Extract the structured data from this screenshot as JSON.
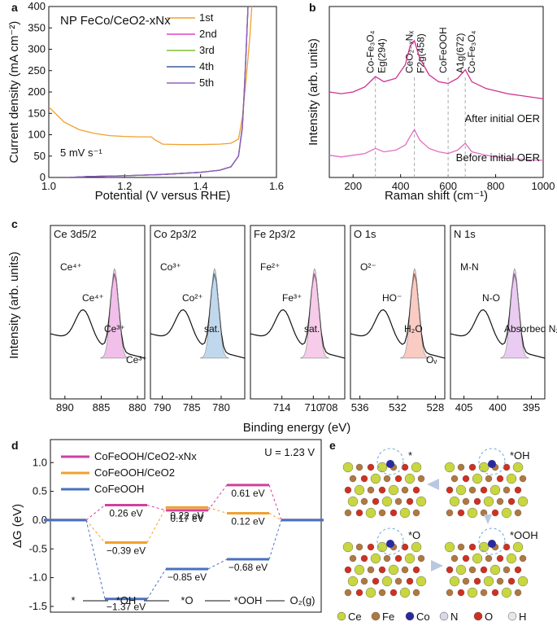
{
  "chart_data": [
    {
      "panel": "a",
      "type": "line",
      "annotation_sample": "NP FeCo/CeO2-xNx",
      "annotation_rate": "5 mV s⁻¹",
      "xlabel": "Potential (V versus RHE)",
      "ylabel": "Current density (mA cm⁻²)",
      "xlim": [
        1.0,
        1.6
      ],
      "ylim": [
        0,
        400
      ],
      "xticks": [
        "1.0",
        "1.2",
        "1.4",
        "1.6"
      ],
      "yticks": [
        "0",
        "50",
        "100",
        "150",
        "200",
        "250",
        "300",
        "350",
        "400"
      ],
      "series": [
        {
          "name": "1st",
          "color": "#f0a030",
          "x": [
            1.0,
            1.04,
            1.08,
            1.12,
            1.16,
            1.2,
            1.24,
            1.27,
            1.28,
            1.3,
            1.35,
            1.4,
            1.45,
            1.48,
            1.5,
            1.51,
            1.52,
            1.53,
            1.535
          ],
          "y": [
            165,
            130,
            112,
            103,
            98,
            96,
            95,
            95,
            88,
            78,
            77,
            77,
            78,
            80,
            90,
            140,
            230,
            330,
            400
          ]
        },
        {
          "name": "2nd",
          "color": "#e040c8",
          "x": [
            1.05,
            1.1,
            1.2,
            1.3,
            1.4,
            1.45,
            1.48,
            1.5,
            1.51,
            1.515,
            1.52,
            1.525
          ],
          "y": [
            0,
            2,
            4,
            7,
            12,
            17,
            25,
            50,
            120,
            200,
            300,
            400
          ]
        },
        {
          "name": "3rd",
          "color": "#80c030",
          "x": [
            1.05,
            1.1,
            1.2,
            1.3,
            1.4,
            1.45,
            1.48,
            1.5,
            1.51,
            1.515,
            1.52,
            1.525
          ],
          "y": [
            0,
            2,
            4,
            7,
            12,
            17,
            25,
            50,
            118,
            198,
            298,
            400
          ]
        },
        {
          "name": "4th",
          "color": "#3d5a99",
          "x": [
            1.05,
            1.1,
            1.2,
            1.3,
            1.4,
            1.45,
            1.48,
            1.5,
            1.51,
            1.515,
            1.52,
            1.525
          ],
          "y": [
            0,
            2,
            4,
            7,
            12,
            17,
            25,
            50,
            116,
            196,
            296,
            400
          ]
        },
        {
          "name": "5th",
          "color": "#9060c0",
          "x": [
            1.05,
            1.1,
            1.2,
            1.3,
            1.4,
            1.45,
            1.48,
            1.5,
            1.51,
            1.515,
            1.52,
            1.525
          ],
          "y": [
            0,
            2,
            4,
            7,
            12,
            17,
            25,
            50,
            114,
            194,
            294,
            400
          ]
        }
      ]
    },
    {
      "panel": "b",
      "type": "line",
      "xlabel": "Raman shift (cm⁻¹)",
      "ylabel": "Intensity (arb. units)",
      "xlim": [
        100,
        1000
      ],
      "xticks": [
        "200",
        "400",
        "600",
        "800",
        "1000"
      ],
      "peak_labels": [
        {
          "text": "Co-Fe₃O₄",
          "sub": "Eg(294)",
          "x": 294
        },
        {
          "text": "CeO₂₋ₓNₓ",
          "sub": "F2g(458)",
          "x": 458
        },
        {
          "text": "CoFeOOH",
          "sub": "",
          "x": 600
        },
        {
          "text": "A1g(672)",
          "sub": "Co-Fe₃O₄",
          "x": 672
        }
      ],
      "series": [
        {
          "name": "After initial OER",
          "color": "#d03090",
          "x": [
            100,
            150,
            200,
            250,
            294,
            330,
            380,
            420,
            440,
            458,
            480,
            520,
            560,
            600,
            640,
            672,
            700,
            760,
            850,
            1000
          ],
          "y": [
            0.7,
            0.69,
            0.7,
            0.73,
            0.79,
            0.76,
            0.78,
            0.86,
            0.97,
            1.0,
            0.9,
            0.8,
            0.76,
            0.75,
            0.78,
            0.83,
            0.76,
            0.72,
            0.69,
            0.66
          ]
        },
        {
          "name": "Before initial OER",
          "color": "#e070c0",
          "x": [
            100,
            150,
            200,
            250,
            294,
            330,
            380,
            420,
            440,
            458,
            480,
            520,
            560,
            600,
            640,
            672,
            700,
            760,
            850,
            1000
          ],
          "y": [
            0.33,
            0.32,
            0.33,
            0.34,
            0.37,
            0.35,
            0.36,
            0.39,
            0.44,
            0.48,
            0.42,
            0.37,
            0.35,
            0.34,
            0.36,
            0.4,
            0.35,
            0.33,
            0.31,
            0.3
          ]
        }
      ]
    },
    {
      "panel": "c",
      "type": "line",
      "xlabel": "Binding energy (eV)",
      "ylabel": "Intensity (arb. units)",
      "subpanels": [
        {
          "title": "Ce 3d5/2",
          "xticks": [
            "890",
            "885",
            "880"
          ],
          "xlim": [
            892,
            879
          ],
          "labels": [
            "Ce⁴⁺",
            "Ce⁴⁺",
            "Ce³⁺",
            "Ce³⁺"
          ]
        },
        {
          "title": "Co 2p3/2",
          "xticks": [
            "790",
            "785",
            "780"
          ],
          "xlim": [
            792,
            776
          ],
          "labels": [
            "Co³⁺",
            "Co²⁺",
            "sat."
          ]
        },
        {
          "title": "Fe 2p3/2",
          "xticks": [
            "714",
            "710",
            "708"
          ],
          "xlim": [
            718,
            706
          ],
          "labels": [
            "Fe²⁺",
            "Fe³⁺",
            "sat."
          ]
        },
        {
          "title": "O 1s",
          "xticks": [
            "536",
            "532",
            "528"
          ],
          "xlim": [
            537,
            527
          ],
          "labels": [
            "O²⁻",
            "HO⁻",
            "H₂O",
            "Oᵥ"
          ]
        },
        {
          "title": "N 1s",
          "xticks": [
            "405",
            "400",
            "395"
          ],
          "xlim": [
            407,
            393
          ],
          "labels": [
            "M-N",
            "N-O",
            "Absorbed N₂"
          ]
        }
      ]
    },
    {
      "panel": "d",
      "type": "line",
      "annotation": "U = 1.23 V",
      "ylabel": "ΔG (eV)",
      "ylim": [
        -1.6,
        1.4
      ],
      "yticks": [
        "1.0",
        "0.5",
        "0.0",
        "-0.5",
        "-1.0",
        "-1.5"
      ],
      "steps": [
        "*",
        "*OH",
        "*O",
        "*OOH",
        "O₂(g)"
      ],
      "series": [
        {
          "name": "CoFeOOH/CeO2-xNx",
          "color": "#d040a0",
          "values": [
            0,
            0.26,
            0.17,
            0.61,
            0
          ],
          "labels": [
            "",
            "0.26 eV",
            "0.17 eV",
            "0.61 eV",
            ""
          ]
        },
        {
          "name": "CoFeOOH/CeO2",
          "color": "#f0a030",
          "values": [
            0,
            -0.39,
            0.22,
            0.12,
            0
          ],
          "labels": [
            "",
            "−0.39 eV",
            "0.22 eV",
            "0.12 eV",
            ""
          ]
        },
        {
          "name": "CoFeOOH",
          "color": "#4a70c0",
          "values": [
            0,
            -1.37,
            -0.85,
            -0.68,
            0
          ],
          "labels": [
            "",
            "−1.37 eV",
            "−0.85 eV",
            "−0.68 eV",
            ""
          ]
        }
      ]
    }
  ],
  "panel_e": {
    "panel": "e",
    "state_labels": [
      "*",
      "*OH",
      "*O",
      "*OOH"
    ],
    "legend": [
      "Ce",
      "Fe",
      "Co",
      "N",
      "O",
      "H"
    ],
    "legend_colors": [
      "#c8d640",
      "#b07840",
      "#2a2aa0",
      "#d8d8e8",
      "#d03020",
      "#e8e8e8"
    ]
  }
}
